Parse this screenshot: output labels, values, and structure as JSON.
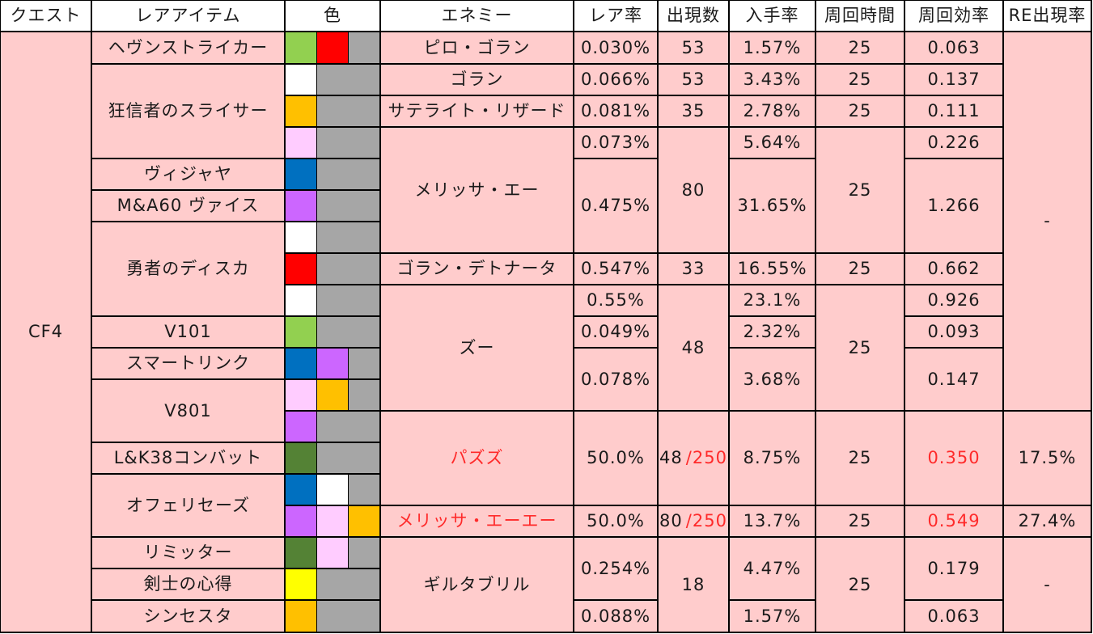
{
  "headers": [
    "クエスト",
    "レアアイテム",
    "色",
    "エネミー",
    "レア率",
    "出現数",
    "入手率",
    "周回時間",
    "周回効率",
    "RE出現率"
  ],
  "quest": "CF4",
  "items": [
    "ヘヴンストライカー",
    "狂信者のスライサー",
    "ヴィジャヤ",
    "M&A60 ヴァイス",
    "勇者のディスカ",
    "V101",
    "スマートリンク",
    "V801",
    "L&K38コンバット",
    "オフェリセーズ",
    "リミッター",
    "剣士の心得",
    "シンセスタ"
  ],
  "enemies": [
    "ピロ・ゴラン",
    "ゴラン",
    "サテライト・リザード",
    "メリッサ・エー",
    "ゴラン・デトナータ",
    "ズー",
    "パズズ",
    "メリッサ・エーエー",
    "ギルタブリル"
  ],
  "rare_rate": [
    "0.030%",
    "0.066%",
    "0.081%",
    "0.073%",
    "0.475%",
    "0.547%",
    "0.55%",
    "0.049%",
    "0.078%",
    "50.0%",
    "50.0%",
    "0.254%",
    "0.088%"
  ],
  "spawn": [
    "53",
    "53",
    "35",
    "80",
    "33",
    "48",
    "48",
    "/250",
    "80",
    "/250",
    "18"
  ],
  "acquire_rate": [
    "1.57%",
    "3.43%",
    "2.78%",
    "5.64%",
    "31.65%",
    "16.55%",
    "23.1%",
    "2.32%",
    "3.68%",
    "8.75%",
    "13.7%",
    "4.47%",
    "1.57%"
  ],
  "cycle_time": [
    "25",
    "25",
    "25",
    "25",
    "25",
    "25",
    "25",
    "25",
    "25"
  ],
  "efficiency": [
    "0.063",
    "0.137",
    "0.111",
    "0.226",
    "1.266",
    "0.662",
    "0.926",
    "0.093",
    "0.147",
    "0.350",
    "0.549",
    "0.179",
    "0.063"
  ],
  "re_rate": [
    "-",
    "17.5%",
    "27.4%",
    "-"
  ],
  "colors": {
    "green": "#92d050",
    "red": "#ff0000",
    "white": "#ffffff",
    "orange": "#ffc000",
    "light_pink": "#ffccff",
    "blue": "#0070c0",
    "purple": "#cc66ff",
    "dark_green": "#548235",
    "yellow": "#ffff00",
    "gray": "#a6a6a6",
    "table_pink": "#ffcccc",
    "highlight_red": "#ff2a2a"
  }
}
